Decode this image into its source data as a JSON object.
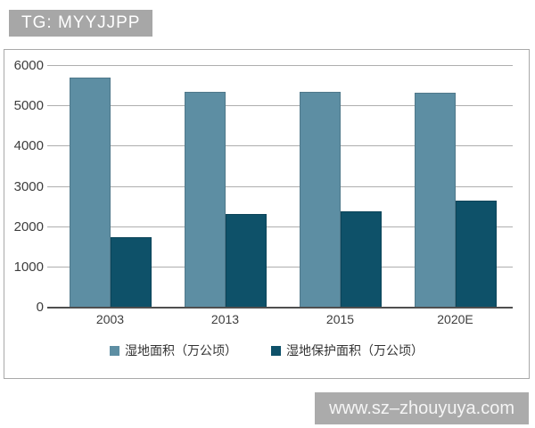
{
  "badge": {
    "text": "TG: MYYJJPP"
  },
  "watermark": {
    "text": "www.sz–zhouyuya.com"
  },
  "colors": {
    "series_wetland_area": "#5d8ea3",
    "series_protected_area": "#0e5169",
    "gridline": "#aeaeae",
    "axis_line": "#4f4f4f",
    "tick_text": "#3d3d3d",
    "badge_bg": "#a7a7a7",
    "watermark_bg": "#ababab",
    "chart_border": "#a9a9a9"
  },
  "chart_data": {
    "type": "bar",
    "title": "",
    "xlabel": "",
    "ylabel": "",
    "categories": [
      "2003",
      "2013",
      "2015",
      "2020E"
    ],
    "series": [
      {
        "name": "湿地面积（万公顷）",
        "color": "#5d8ea3",
        "values": [
          5720,
          5360,
          5360,
          5330
        ]
      },
      {
        "name": "湿地保护面积（万公顷）",
        "color": "#0e5169",
        "values": [
          1750,
          2324,
          2391,
          2660
        ]
      }
    ],
    "ylim": [
      0,
      6000
    ],
    "yticks": [
      0,
      1000,
      2000,
      3000,
      4000,
      5000,
      6000
    ],
    "grid": true,
    "legend_position": "bottom"
  }
}
